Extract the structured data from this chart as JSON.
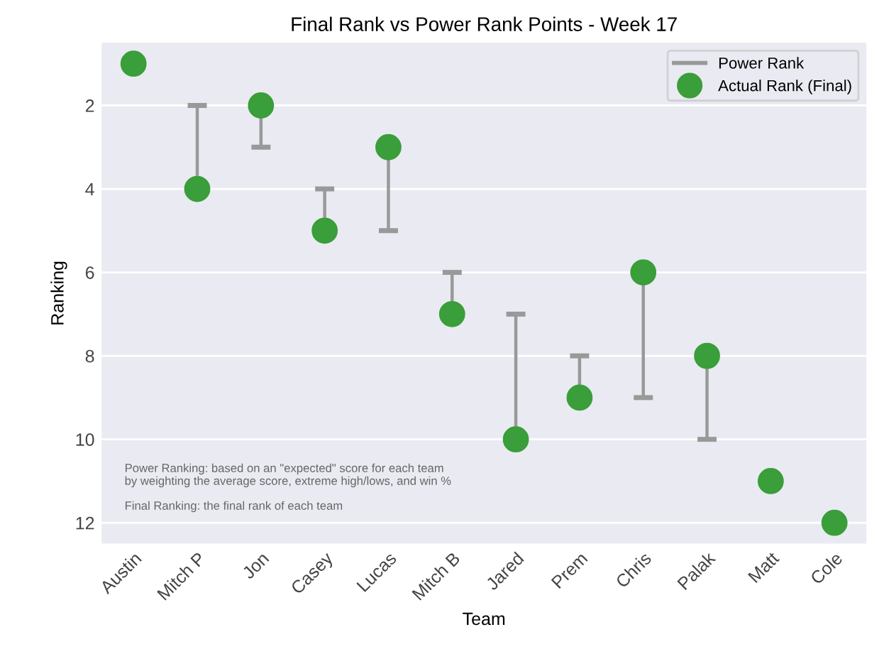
{
  "chart_data": {
    "type": "scatter",
    "title": "Final Rank vs Power Rank Points - Week 17",
    "xlabel": "Team",
    "ylabel": "Ranking",
    "categories": [
      "Austin",
      "Mitch P",
      "Jon",
      "Casey",
      "Lucas",
      "Mitch B",
      "Jared",
      "Prem",
      "Chris",
      "Palak",
      "Matt",
      "Cole"
    ],
    "series": [
      {
        "name": "Power Rank",
        "type": "bar",
        "color": "#999999",
        "base": [
          null,
          4,
          2,
          5,
          3,
          7,
          10,
          9,
          6,
          8,
          null,
          null
        ],
        "values": [
          null,
          -2,
          1,
          -1,
          2,
          -1,
          -3,
          -1,
          3,
          2,
          null,
          null
        ]
      },
      {
        "name": "Actual Rank (Final)",
        "color": "#3a9e3a",
        "marker": "circle",
        "values": [
          1,
          4,
          2,
          5,
          3,
          7,
          10,
          9,
          6,
          8,
          11,
          12
        ]
      }
    ],
    "ylim": [
      12.5,
      0.5
    ],
    "yticks": [
      2,
      4,
      6,
      8,
      10,
      12
    ],
    "grid": "y",
    "legend": "top right",
    "annotations": [
      "Power Ranking: based on an \"expected\" score for each team\nby weighting the average score, extreme high/lows, and win %",
      "Final Ranking: the final rank of each team"
    ]
  }
}
